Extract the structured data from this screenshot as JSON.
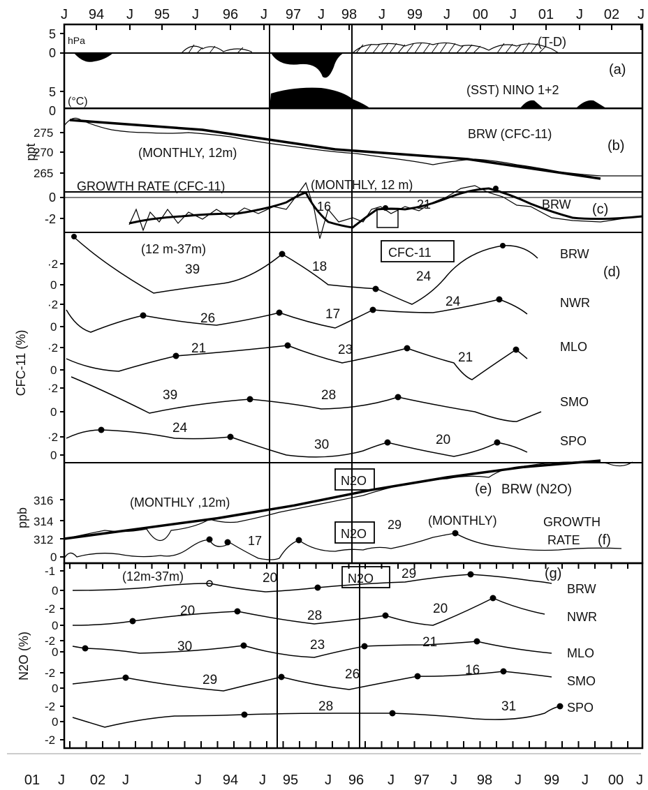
{
  "top_axis": {
    "labels": [
      "J",
      "94",
      "J",
      "95",
      "J",
      "96",
      "J",
      "97",
      "J",
      "98",
      "J",
      "99",
      "J",
      "00",
      "J",
      "01",
      "J",
      "02",
      "J"
    ]
  },
  "bottom_axis": {
    "labels": [
      "01",
      "J",
      "02",
      "J",
      "J",
      "94",
      "J",
      "95",
      "J",
      "96",
      "J",
      "97",
      "J",
      "98",
      "J",
      "99",
      "J",
      "00",
      "J"
    ]
  },
  "panel_labels": [
    "(a)",
    "(b)",
    "(c)",
    "(d)",
    "(e)",
    "(f)",
    "(g)"
  ],
  "a": {
    "unit": "hPa",
    "ticks": [
      "5",
      "0"
    ],
    "label": "(T-D)",
    "sst_unit": "(°C)",
    "sst_ticks": [
      "5",
      "0"
    ],
    "sst_label": "(SST) NINO 1+2"
  },
  "b": {
    "ylabel": "ppt",
    "ticks": [
      "275",
      "270",
      "265"
    ],
    "label": "BRW (CFC-11)",
    "note": "(MONTHLY, 12m)"
  },
  "c": {
    "ticks": [
      "0",
      "-2"
    ],
    "title": "GROWTH RATE (CFC-11)",
    "note": "(MONTHLY, 12 m)",
    "numbers": [
      "16",
      "21"
    ],
    "station": "BRW"
  },
  "d": {
    "ylabel": "CFC-11 (%)",
    "note": "(12 m-37m)",
    "box": "CFC-11",
    "ticks": [
      "·2",
      "0"
    ],
    "stations": [
      "BRW",
      "NWR",
      "MLO",
      "SMO",
      "SPO"
    ],
    "numbers": [
      {
        "station": "BRW",
        "values": [
          "39",
          "18",
          "24"
        ]
      },
      {
        "station": "NWR",
        "values": [
          "26",
          "17",
          "24"
        ]
      },
      {
        "station": "MLO",
        "values": [
          "21",
          "23",
          "21"
        ]
      },
      {
        "station": "SMO",
        "values": [
          "39",
          "28"
        ]
      },
      {
        "station": "SPO",
        "values": [
          "24",
          "30",
          "20"
        ]
      }
    ]
  },
  "e": {
    "ylabel": "ppb",
    "ticks": [
      "316",
      "314",
      "312"
    ],
    "box": "N2O",
    "label": "BRW (N2O)",
    "note": "(MONTHLY ,12m)"
  },
  "f": {
    "tick": "0",
    "box": "N2O",
    "note": "(MONTHLY)",
    "label1": "GROWTH",
    "label2": "RATE",
    "numbers": [
      "17",
      "29"
    ]
  },
  "g": {
    "ylabel": "N2O (%)",
    "note": "(12m-37m)",
    "box": "N2O",
    "ticks": [
      "-1",
      "0",
      "-2",
      "0",
      "-2",
      "0",
      "-2",
      "0",
      "-2",
      "0",
      "-2"
    ],
    "stations": [
      "BRW",
      "NWR",
      "MLO",
      "SMO",
      "SPO"
    ],
    "numbers": [
      {
        "station": "BRW",
        "values": [
          "20",
          "29"
        ]
      },
      {
        "station": "NWR",
        "values": [
          "20",
          "28",
          "20"
        ]
      },
      {
        "station": "MLO",
        "values": [
          "30",
          "23",
          "21"
        ]
      },
      {
        "station": "SMO",
        "values": [
          "29",
          "26",
          "16"
        ]
      },
      {
        "station": "SPO",
        "values": [
          "28",
          "31"
        ]
      }
    ]
  },
  "chart_data": {
    "type": "line",
    "x_axis_top": [
      "94",
      "95",
      "96",
      "97",
      "98",
      "99",
      "00",
      "01",
      "02"
    ],
    "x_axis_bottom": [
      "01",
      "02",
      "94",
      "95",
      "96",
      "97",
      "98",
      "99",
      "00"
    ],
    "series": [
      {
        "name": "BRW (CFC-11)",
        "x": [
          1993.5,
          1994.5,
          1995.5,
          1996.5,
          1997.5,
          1998.5,
          1999.5,
          2000.5,
          2001.5
        ],
        "values": [
          276,
          275,
          274,
          272,
          270,
          269,
          268,
          266,
          264
        ]
      },
      {
        "name": "BRW (N2O)",
        "x": [
          1995,
          1996,
          1997,
          1998,
          1999,
          2000,
          2001,
          2002
        ],
        "values": [
          312.2,
          313,
          313.8,
          314.8,
          316,
          317,
          317.8,
          318.3
        ]
      }
    ],
    "yrange_b": [
      264,
      277
    ],
    "yrange_e": [
      310,
      319
    ]
  }
}
